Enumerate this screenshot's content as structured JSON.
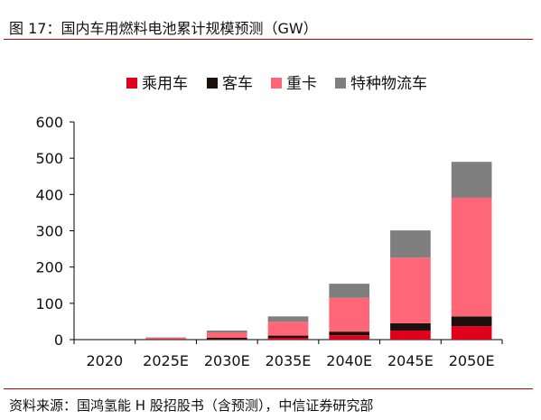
{
  "title": "图 17：国内车用燃料电池累计规模预测（GW）",
  "source": "资料来源：国鸿氢能 H 股招股书（含预测），中信证券研究部",
  "chart_data": {
    "type": "bar",
    "stacked": true,
    "title": "图 17：国内车用燃料电池累计规模预测（GW）",
    "categories": [
      "2020",
      "2025E",
      "2030E",
      "2035E",
      "2040E",
      "2045E",
      "2050E"
    ],
    "series": [
      {
        "name": "乘用车",
        "color": "#e0001b",
        "values": [
          0,
          0,
          1,
          5,
          12,
          25,
          37
        ]
      },
      {
        "name": "客车",
        "color": "#1c100c",
        "values": [
          0,
          1,
          4,
          6,
          10,
          20,
          27
        ]
      },
      {
        "name": "重卡",
        "color": "#ff6678",
        "values": [
          0,
          4,
          15,
          38,
          93,
          181,
          327
        ]
      },
      {
        "name": "特种物流车",
        "color": "#7f7f7f",
        "values": [
          0,
          1,
          5,
          15,
          39,
          75,
          99
        ]
      }
    ],
    "yticks": [
      0,
      100,
      200,
      300,
      400,
      500,
      600
    ],
    "ylim": [
      0,
      600
    ],
    "grid": false,
    "legend_position": "top"
  }
}
